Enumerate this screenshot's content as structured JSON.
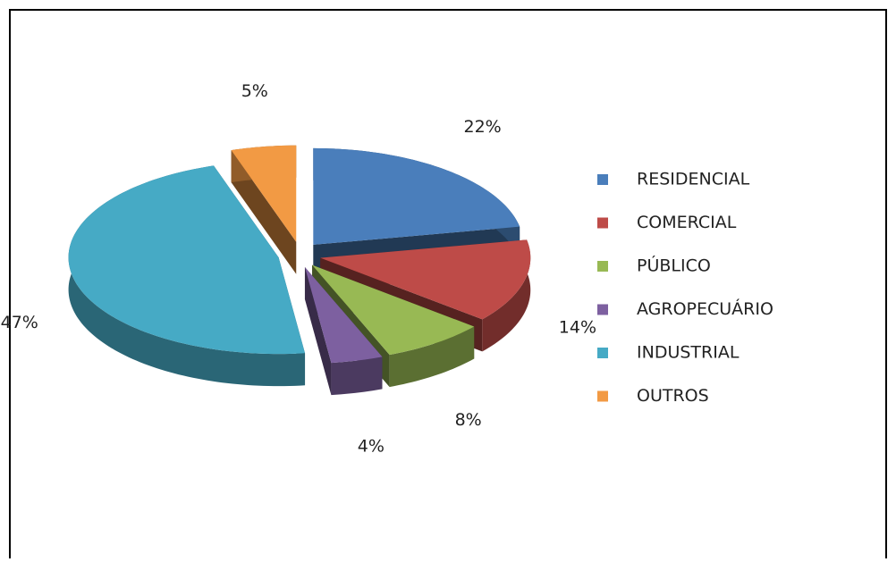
{
  "chart_data": {
    "type": "pie",
    "categories": [
      "RESIDENCIAL",
      "COMERCIAL",
      "PÚBLICO",
      "AGROPECUÁRIO",
      "INDUSTRIAL",
      "OUTROS"
    ],
    "values": [
      22,
      14,
      8,
      4,
      47,
      5
    ],
    "value_labels": [
      "22%",
      "14%",
      "8%",
      "4%",
      "47%",
      "5%"
    ],
    "colors": [
      "#4a7ebb",
      "#be4b48",
      "#98b954",
      "#7d60a0",
      "#46aac5",
      "#f29a44"
    ],
    "legend": "right"
  }
}
